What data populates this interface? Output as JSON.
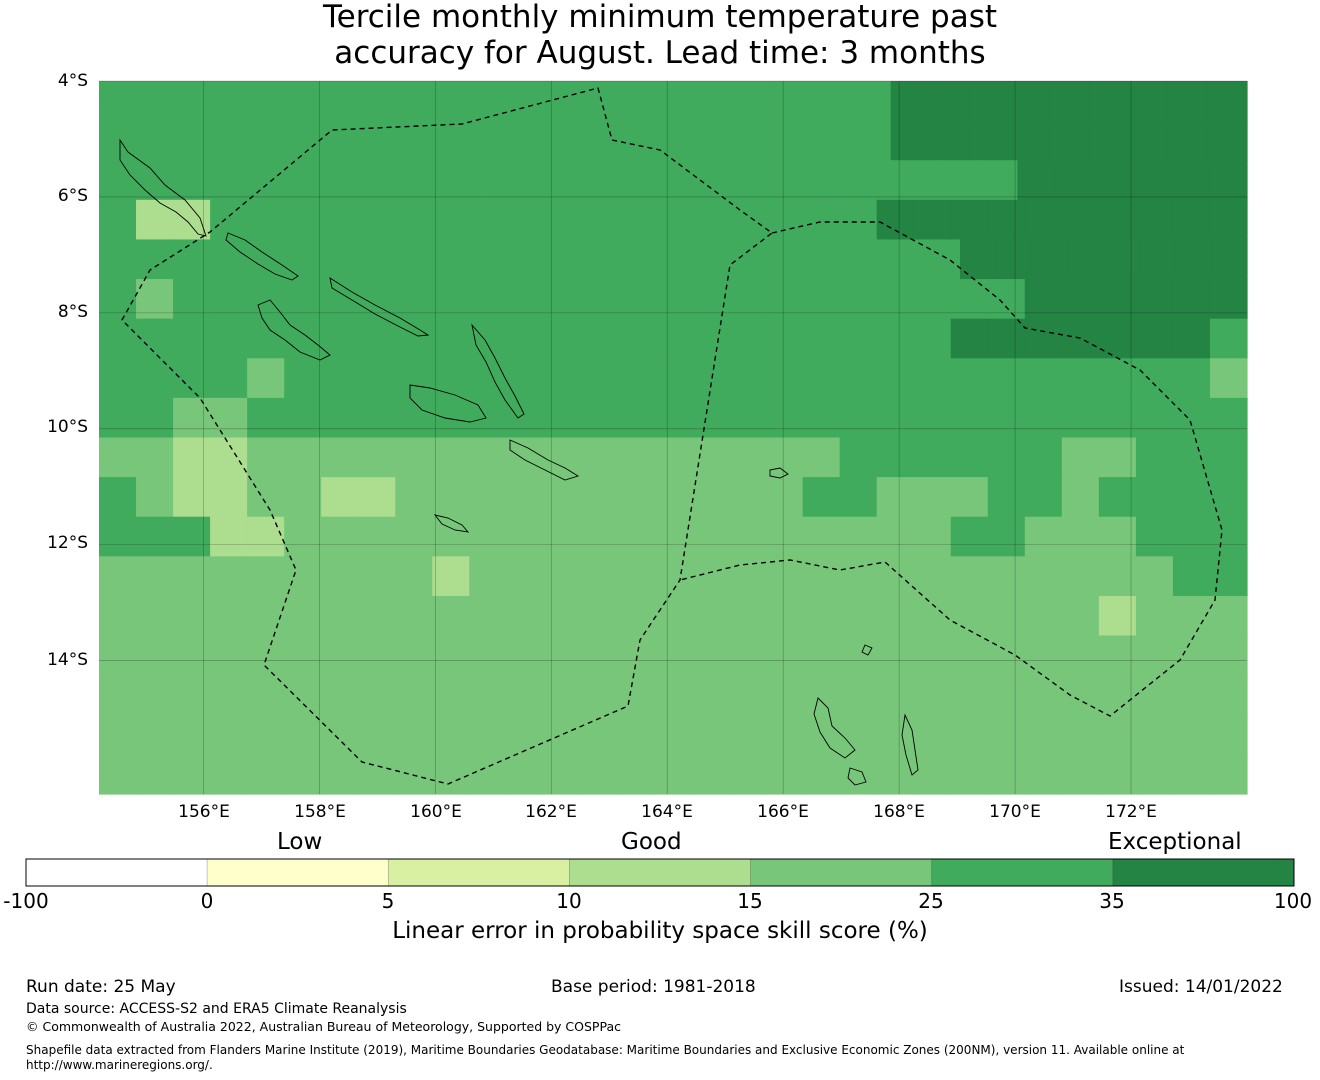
{
  "title_line1": "Tercile monthly minimum temperature past",
  "title_line2": "accuracy for August. Lead time: 3 months",
  "lat_labels": [
    "4°S",
    "6°S",
    "8°S",
    "10°S",
    "12°S",
    "14°S"
  ],
  "lon_labels": [
    "156°E",
    "158°E",
    "160°E",
    "162°E",
    "164°E",
    "166°E",
    "168°E",
    "170°E",
    "172°E"
  ],
  "category_labels": {
    "low": "Low",
    "good": "Good",
    "exceptional": "Exceptional"
  },
  "colorbar": {
    "ticks": [
      "-100",
      "0",
      "5",
      "10",
      "15",
      "25",
      "35",
      "100"
    ],
    "colors": [
      "#ffffff",
      "#ffffcc",
      "#d9f0a3",
      "#addd8e",
      "#78c679",
      "#41ab5d",
      "#238443"
    ],
    "label": "Linear error in probability space skill score (%)"
  },
  "footer": {
    "run_date": "Run date: 25 May",
    "base_period": "Base period: 1981-2018",
    "issued": "Issued: 14/01/2022",
    "data_source": "Data source: ACCESS-S2 and ERA5 Climate Reanalysis",
    "copyright": "© Commonwealth of Australia 2022, Australian Bureau of Meteorology, Supported by COSPPac",
    "shapefile_line1": "Shapefile data extracted from Flanders Marine Institute (2019), Maritime Boundaries Geodatabase: Maritime Boundaries and Exclusive Economic Zones (200NM), version 11. Available online at",
    "shapefile_line2": "http://www.marineregions.org/."
  },
  "map": {
    "lon_range": [
      154.2,
      174.0
    ],
    "lat_range": [
      -16.3,
      -4.0
    ],
    "cell_size_deg": 0.833,
    "skill_class_grid": [
      "55555555555555555555666666666",
      "55555555555555555555666666666",
      "555555555555555555555555666666",
      "5335555555555555555556666666666",
      "55555555555555555555555566666666",
      "5455555555555555555555555666666",
      "5555555555555555555555566666665",
      "5555455555555555555555555555554",
      "5544555555555555555555555555555",
      "4433444444444444444455555544555",
      "5433443344444444444554445545555",
      "5553344444444444444444455444555",
      "4444444443444444444444444444455",
      "4444444444444444444444444443444",
      "4444444444444444444444444444444",
      "4444444444444444444444444444444",
      "4444444444444444444444444444444",
      "4444444444444444444444444444444"
    ]
  }
}
